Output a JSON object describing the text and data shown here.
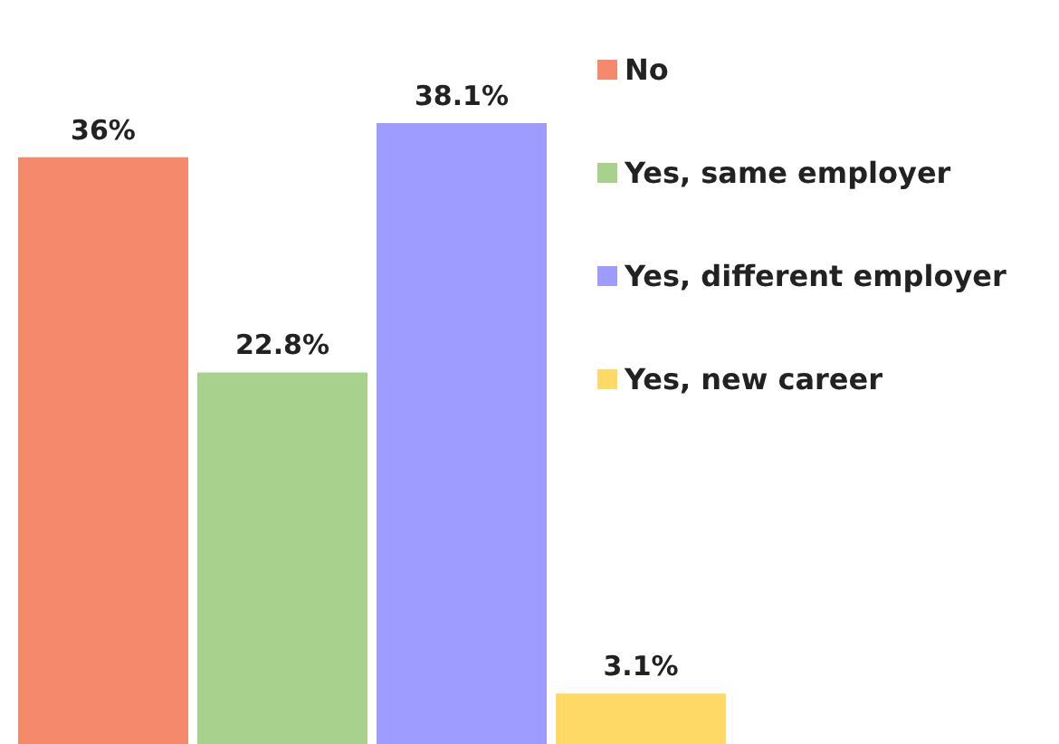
{
  "chart_data": {
    "type": "bar",
    "categories": [
      null
    ],
    "series": [
      {
        "name": "No",
        "color": "#f4896b",
        "values": [
          36
        ],
        "value_labels": [
          "36%"
        ]
      },
      {
        "name": "Yes, same employer",
        "color": "#a9d18e",
        "values": [
          22.8
        ],
        "value_labels": [
          "22.8%"
        ]
      },
      {
        "name": "Yes, different employer",
        "color": "#9e9cff",
        "values": [
          38.1
        ],
        "value_labels": [
          "38.1%"
        ]
      },
      {
        "name": "Yes, new career",
        "color": "#ffd966",
        "values": [
          3.1
        ],
        "value_labels": [
          "3.1%"
        ]
      }
    ],
    "legend": "top right"
  }
}
